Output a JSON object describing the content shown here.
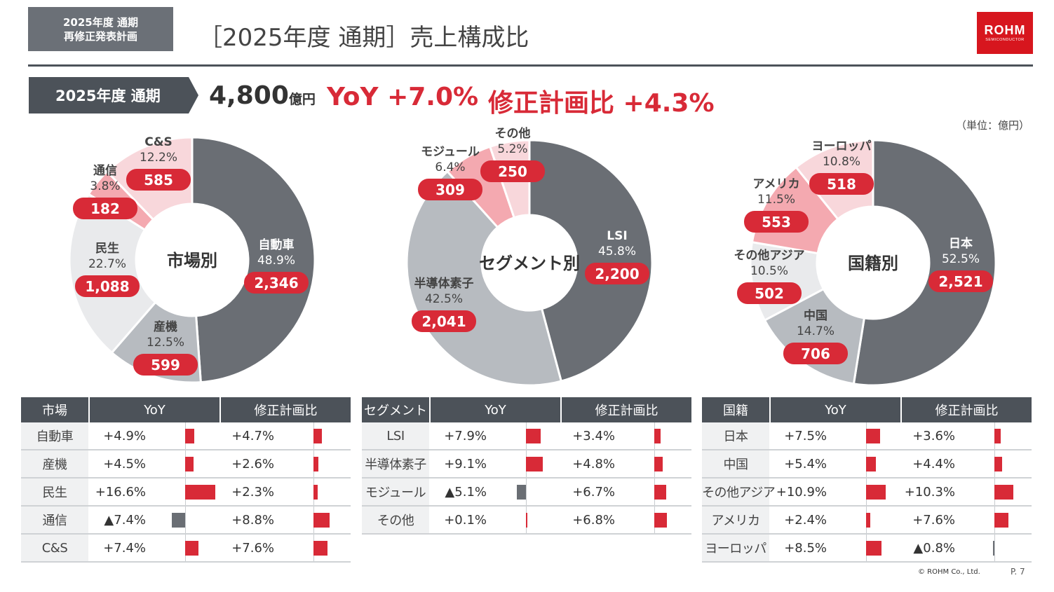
{
  "header": {
    "tag_line1": "2025年度 通期",
    "tag_line2": "再修正発表計画",
    "title": "［2025年度 通期］売上構成比",
    "logo_main": "ROHM",
    "logo_sub": "SEMICONDUCTOR"
  },
  "summary": {
    "period": "2025年度 通期",
    "total": "4,800",
    "total_unit": "億円",
    "yoy": "YoY +7.0%",
    "vs_plan": "修正計画比 +4.3%"
  },
  "unit_note": "（単位：億円）",
  "colors": {
    "dark": "#6a6e74",
    "mid": "#b7bbc0",
    "light": "#e9eaec",
    "red_light": "#f4a9b0",
    "pink": "#f8d7db",
    "label_red": "#d82a37",
    "neg": "#6a6e74"
  },
  "chart_data": [
    {
      "type": "pie",
      "title": "市場別",
      "slices": [
        {
          "label": "自動車",
          "pct": "48.9%",
          "value": 2346,
          "value_text": "2,346",
          "color": "#6a6e74"
        },
        {
          "label": "産機",
          "pct": "12.5%",
          "value": 599,
          "value_text": "599",
          "color": "#b7bbc0"
        },
        {
          "label": "民生",
          "pct": "22.7%",
          "value": 1088,
          "value_text": "1,088",
          "color": "#e9eaec"
        },
        {
          "label": "通信",
          "pct": "3.8%",
          "value": 182,
          "value_text": "182",
          "color": "#f4a9b0"
        },
        {
          "label": "C&S",
          "pct": "12.2%",
          "value": 585,
          "value_text": "585",
          "color": "#f8d7db"
        }
      ]
    },
    {
      "type": "pie",
      "title": "セグメント別",
      "slices": [
        {
          "label": "LSI",
          "pct": "45.8%",
          "value": 2200,
          "value_text": "2,200",
          "color": "#6a6e74"
        },
        {
          "label": "半導体素子",
          "pct": "42.5%",
          "value": 2041,
          "value_text": "2,041",
          "color": "#b7bbc0"
        },
        {
          "label": "モジュール",
          "pct": "6.4%",
          "value": 309,
          "value_text": "309",
          "color": "#f4a9b0"
        },
        {
          "label": "その他",
          "pct": "5.2%",
          "value": 250,
          "value_text": "250",
          "color": "#f8d7db"
        }
      ]
    },
    {
      "type": "pie",
      "title": "国籍別",
      "slices": [
        {
          "label": "日本",
          "pct": "52.5%",
          "value": 2521,
          "value_text": "2,521",
          "color": "#6a6e74"
        },
        {
          "label": "中国",
          "pct": "14.7%",
          "value": 706,
          "value_text": "706",
          "color": "#b7bbc0"
        },
        {
          "label": "その他アジア",
          "pct": "10.5%",
          "value": 502,
          "value_text": "502",
          "color": "#e9eaec"
        },
        {
          "label": "アメリカ",
          "pct": "11.5%",
          "value": 553,
          "value_text": "553",
          "color": "#f4a9b0"
        },
        {
          "label": "ヨーロッパ",
          "pct": "10.8%",
          "value": 518,
          "value_text": "518",
          "color": "#f8d7db"
        }
      ]
    }
  ],
  "tables": [
    {
      "headers": [
        "市場",
        "YoY",
        "修正計画比"
      ],
      "rows": [
        {
          "name": "自動車",
          "yoy": "+4.9%",
          "yoy_v": 4.9,
          "plan": "+4.7%",
          "plan_v": 4.7
        },
        {
          "name": "産機",
          "yoy": "+4.5%",
          "yoy_v": 4.5,
          "plan": "+2.6%",
          "plan_v": 2.6
        },
        {
          "name": "民生",
          "yoy": "+16.6%",
          "yoy_v": 16.6,
          "plan": "+2.3%",
          "plan_v": 2.3
        },
        {
          "name": "通信",
          "yoy": "▲7.4%",
          "yoy_v": -7.4,
          "plan": "+8.8%",
          "plan_v": 8.8
        },
        {
          "name": "C&S",
          "yoy": "+7.4%",
          "yoy_v": 7.4,
          "plan": "+7.6%",
          "plan_v": 7.6
        }
      ]
    },
    {
      "headers": [
        "セグメント",
        "YoY",
        "修正計画比"
      ],
      "rows": [
        {
          "name": "LSI",
          "yoy": "+7.9%",
          "yoy_v": 7.9,
          "plan": "+3.4%",
          "plan_v": 3.4
        },
        {
          "name": "半導体素子",
          "yoy": "+9.1%",
          "yoy_v": 9.1,
          "plan": "+4.8%",
          "plan_v": 4.8
        },
        {
          "name": "モジュール",
          "yoy": "▲5.1%",
          "yoy_v": -5.1,
          "plan": "+6.7%",
          "plan_v": 6.7
        },
        {
          "name": "その他",
          "yoy": "+0.1%",
          "yoy_v": 0.1,
          "plan": "+6.8%",
          "plan_v": 6.8
        }
      ]
    },
    {
      "headers": [
        "国籍",
        "YoY",
        "修正計画比"
      ],
      "rows": [
        {
          "name": "日本",
          "yoy": "+7.5%",
          "yoy_v": 7.5,
          "plan": "+3.6%",
          "plan_v": 3.6
        },
        {
          "name": "中国",
          "yoy": "+5.4%",
          "yoy_v": 5.4,
          "plan": "+4.4%",
          "plan_v": 4.4
        },
        {
          "name": "その他アジア",
          "yoy": "+10.9%",
          "yoy_v": 10.9,
          "plan": "+10.3%",
          "plan_v": 10.3
        },
        {
          "name": "アメリカ",
          "yoy": "+2.4%",
          "yoy_v": 2.4,
          "plan": "+7.6%",
          "plan_v": 7.6
        },
        {
          "name": "ヨーロッパ",
          "yoy": "+8.5%",
          "yoy_v": 8.5,
          "plan": "▲0.8%",
          "plan_v": -0.8
        }
      ]
    }
  ],
  "footer": {
    "copyright": "©  ROHM Co., Ltd.",
    "page": "P. 7"
  }
}
